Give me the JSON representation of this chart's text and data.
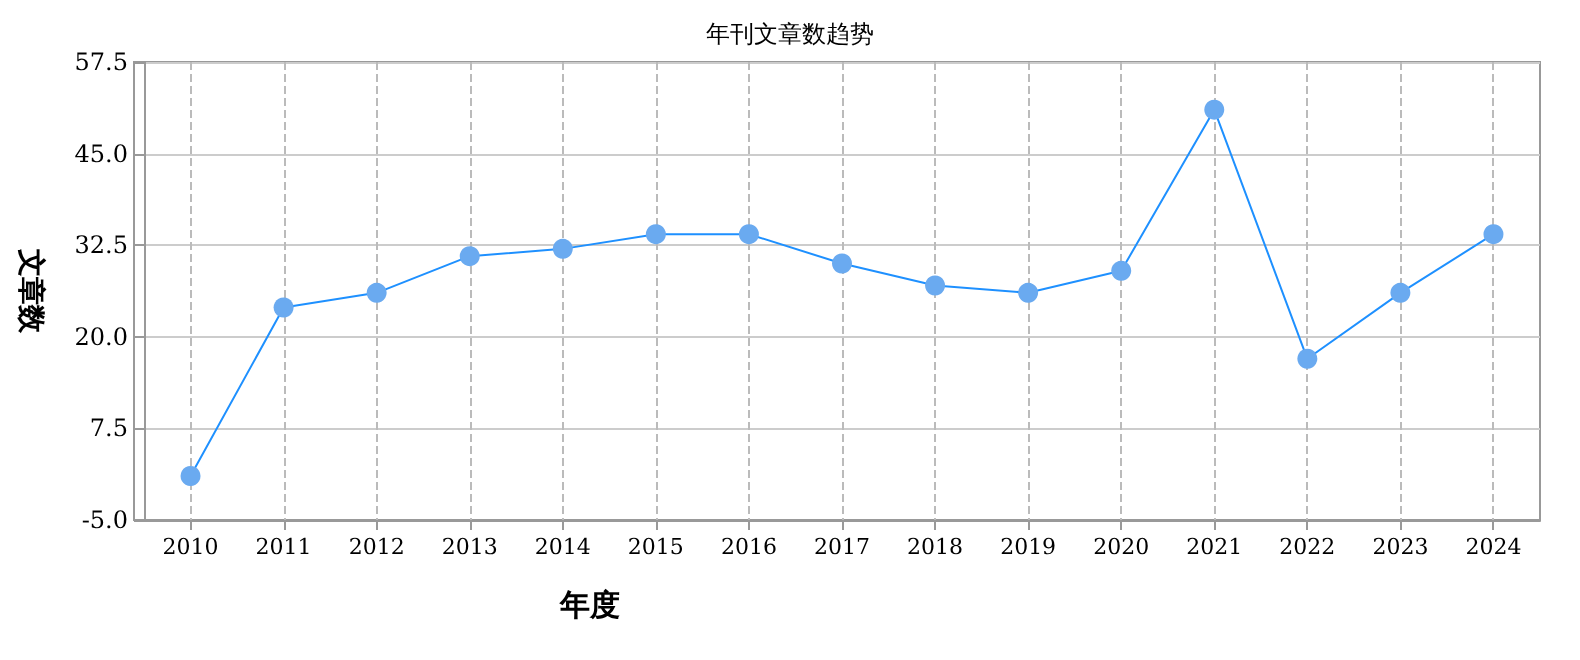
{
  "chart_data": {
    "type": "line",
    "title": "年刊文章数趋势",
    "xlabel": "年度",
    "ylabel": "文章数",
    "x": [
      2010,
      2011,
      2012,
      2013,
      2014,
      2015,
      2016,
      2017,
      2018,
      2019,
      2020,
      2021,
      2022,
      2023,
      2024
    ],
    "series": [
      {
        "color": "#1e90ff",
        "values": [
          1,
          24,
          26,
          31,
          32,
          34,
          34,
          30,
          27,
          26,
          29,
          51,
          17,
          26,
          34
        ]
      }
    ],
    "xlim": [
      2009.5,
      2024.5
    ],
    "xticks": [
      2010,
      2011,
      2012,
      2013,
      2014,
      2015,
      2016,
      2017,
      2018,
      2019,
      2020,
      2021,
      2022,
      2023,
      2024
    ],
    "ylim": [
      -5,
      57.5
    ],
    "yticks": [
      {
        "value": -5,
        "label": "-5.0"
      },
      7.5,
      {
        "value": 20,
        "label": "20.0"
      },
      32.5,
      {
        "value": 45,
        "label": "45.0"
      },
      57.5
    ],
    "grid": true,
    "marker": "circle",
    "line_style": "solid"
  }
}
